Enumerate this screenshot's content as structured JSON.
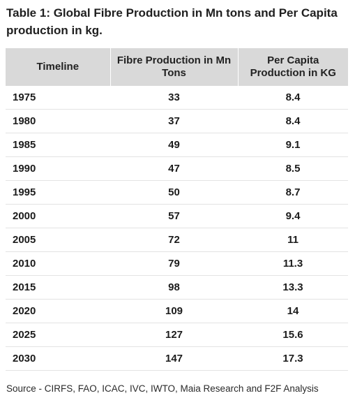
{
  "title": "Table 1: Global Fibre Production in Mn tons and Per Capita production in kg.",
  "table": {
    "headers": [
      "Timeline",
      "Fibre Production in Mn Tons",
      "Per Capita Production in KG"
    ],
    "rows": [
      [
        "1975",
        "33",
        "8.4"
      ],
      [
        "1980",
        "37",
        "8.4"
      ],
      [
        "1985",
        "49",
        "9.1"
      ],
      [
        "1990",
        "47",
        "8.5"
      ],
      [
        "1995",
        "50",
        "8.7"
      ],
      [
        "2000",
        "57",
        "9.4"
      ],
      [
        "2005",
        "72",
        "11"
      ],
      [
        "2010",
        "79",
        "11.3"
      ],
      [
        "2015",
        "98",
        "13.3"
      ],
      [
        "2020",
        "109",
        "14"
      ],
      [
        "2025",
        "127",
        "15.6"
      ],
      [
        "2030",
        "147",
        "17.3"
      ]
    ]
  },
  "source": "Source - CIRFS, FAO, ICAC, IVC, IWTO, Maia Research and F2F Analysis"
}
